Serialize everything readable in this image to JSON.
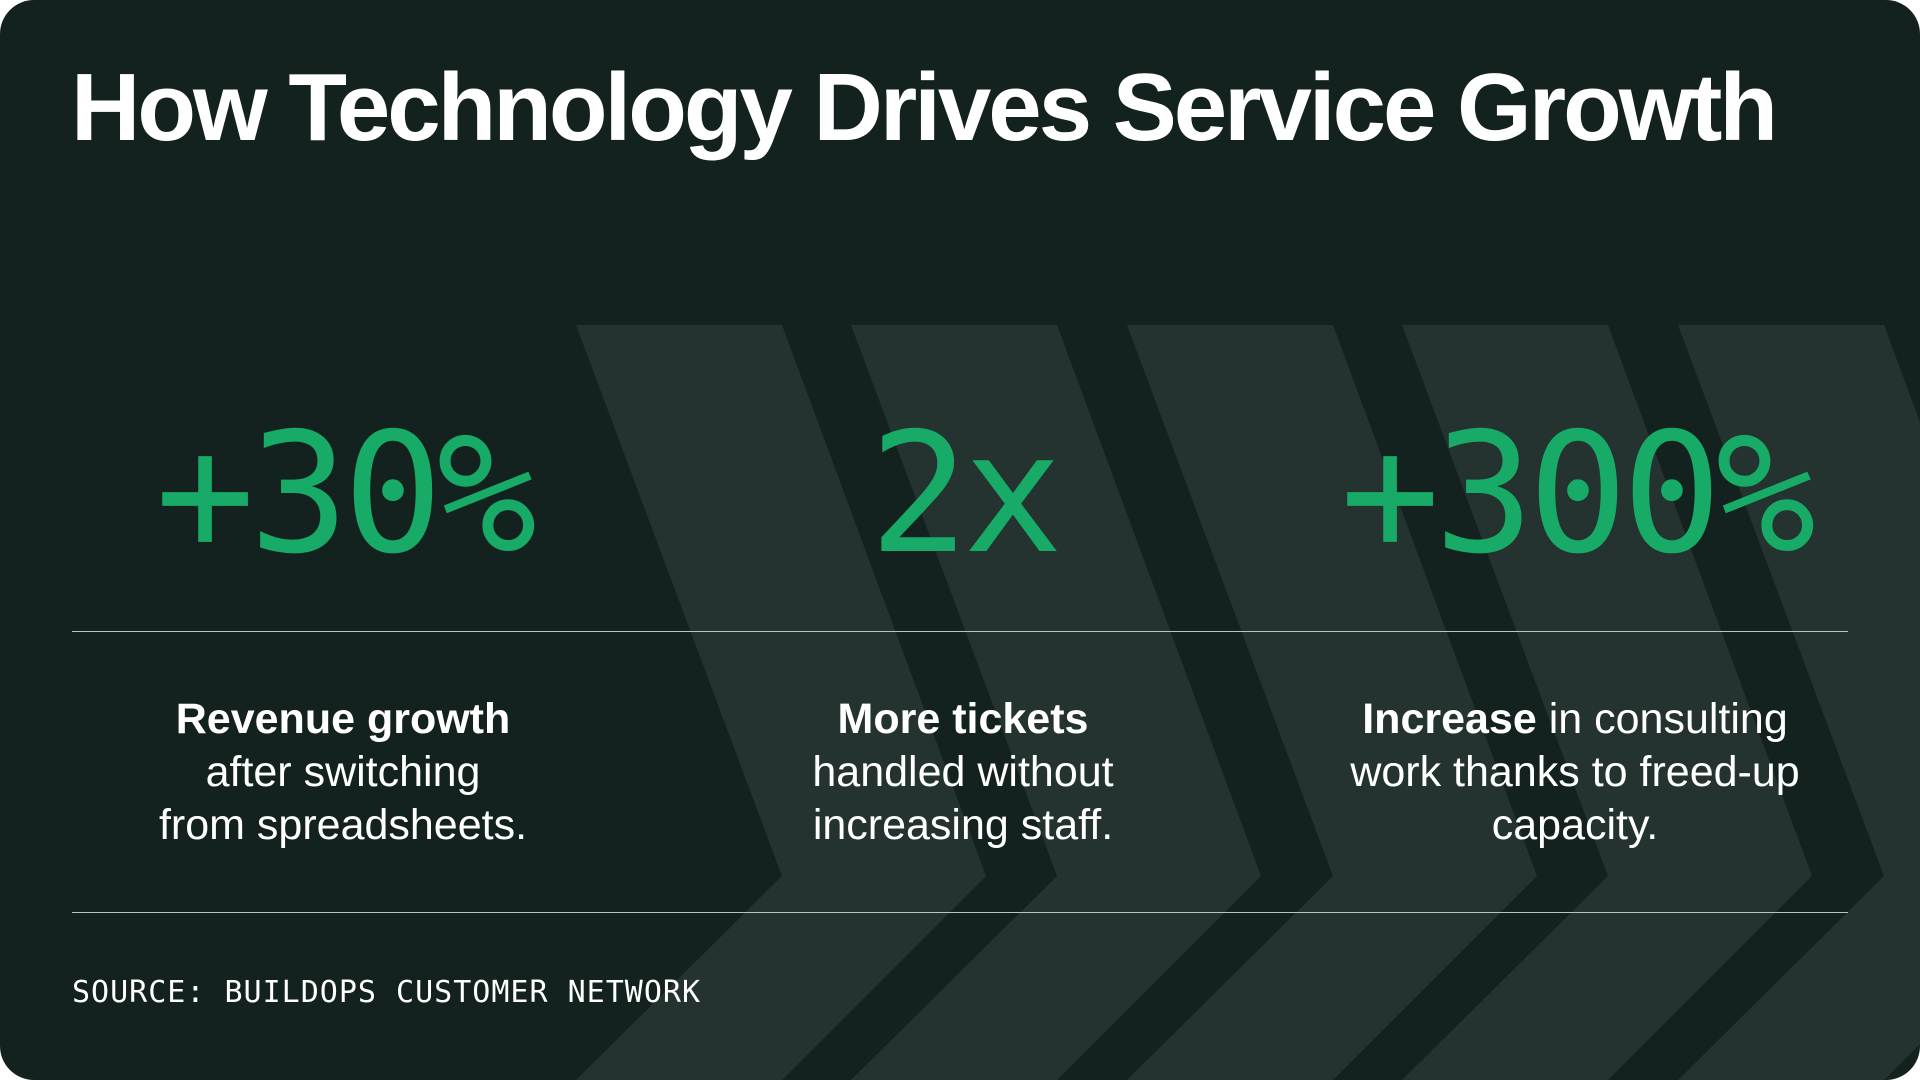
{
  "colors": {
    "background": "#13221e",
    "chevron": "#24332f",
    "accent": "#17ab67",
    "text": "#ffffff",
    "divider": "#b9c3bf"
  },
  "title": "How Technology Drives Service Growth",
  "stats": [
    {
      "value": "+30%",
      "desc_bold": "Revenue growth",
      "desc_rest": [
        "after switching",
        "from spreadsheets."
      ]
    },
    {
      "value": "2x",
      "desc_bold": "More tickets",
      "desc_rest": [
        "handled without",
        "increasing staff."
      ]
    },
    {
      "value": "+300%",
      "desc_bold": "Increase",
      "desc_rest_inline": " in consulting",
      "desc_rest": [
        "work thanks to freed-up",
        "capacity."
      ]
    }
  ],
  "source": "SOURCE: BUILDOPS CUSTOMER NETWORK"
}
